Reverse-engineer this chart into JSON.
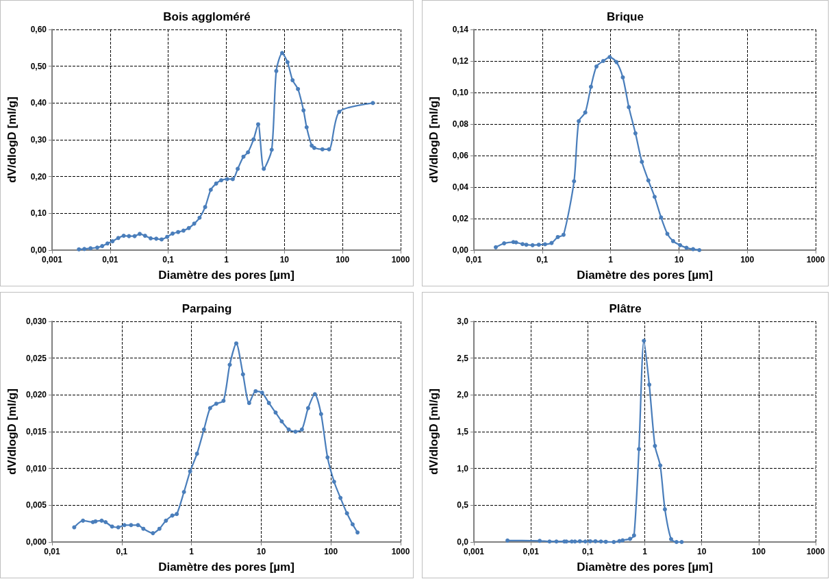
{
  "chart_data": [
    {
      "type": "line",
      "title": "Bois aggloméré",
      "xlabel": "Diamètre des pores [µm]",
      "ylabel": "dV/dlogD [ml/g]",
      "log": "x",
      "grid": true,
      "marker": "circle",
      "line_style": "solid",
      "xlim": [
        0.001,
        1000
      ],
      "xticks": [
        {
          "value": 0.001,
          "label": "0,001"
        },
        {
          "value": 0.01,
          "label": "0,01"
        },
        {
          "value": 0.1,
          "label": "0,1"
        },
        1,
        10,
        100,
        1000
      ],
      "ylim": [
        0,
        0.6
      ],
      "yticks": [
        {
          "value": 0,
          "label": "0,00"
        },
        {
          "value": 0.1,
          "label": "0,10"
        },
        {
          "value": 0.2,
          "label": "0,20"
        },
        {
          "value": 0.3,
          "label": "0,30"
        },
        {
          "value": 0.4,
          "label": "0,40"
        },
        {
          "value": 0.5,
          "label": "0,50"
        },
        {
          "value": 0.6,
          "label": "0,60"
        }
      ],
      "series": [
        {
          "color": "#4a7ebb",
          "x": [
            0.0029,
            0.0036,
            0.0046,
            0.006,
            0.0073,
            0.009,
            0.011,
            0.0138,
            0.0171,
            0.0211,
            0.0264,
            0.0323,
            0.0399,
            0.0498,
            0.0622,
            0.0769,
            0.096,
            0.119,
            0.148,
            0.183,
            0.226,
            0.28,
            0.346,
            0.432,
            0.54,
            0.668,
            0.817,
            1.03,
            1.29,
            1.57,
            1.97,
            2.36,
            2.94,
            3.53,
            4.41,
            6.04,
            7.24,
            9.14,
            11.3,
            13.8,
            17.1,
            21.3,
            24.1,
            29.5,
            32.6,
            45.1,
            58.6,
            87.8,
            333
          ],
          "values": [
            0.002,
            0.003,
            0.005,
            0.007,
            0.011,
            0.018,
            0.024,
            0.033,
            0.039,
            0.038,
            0.038,
            0.044,
            0.039,
            0.032,
            0.031,
            0.029,
            0.036,
            0.045,
            0.049,
            0.053,
            0.06,
            0.072,
            0.088,
            0.117,
            0.164,
            0.181,
            0.19,
            0.193,
            0.193,
            0.221,
            0.254,
            0.266,
            0.301,
            0.342,
            0.221,
            0.273,
            0.487,
            0.536,
            0.511,
            0.462,
            0.438,
            0.38,
            0.334,
            0.284,
            0.278,
            0.274,
            0.274,
            0.376,
            0.4
          ]
        }
      ]
    },
    {
      "type": "line",
      "title": "Brique",
      "xlabel": "Diamètre des pores [µm]",
      "ylabel": "dV/dlogD [ml/g]",
      "log": "x",
      "grid": true,
      "marker": "circle",
      "line_style": "solid",
      "xlim": [
        0.01,
        1000
      ],
      "xticks": [
        {
          "value": 0.01,
          "label": "0,01"
        },
        {
          "value": 0.1,
          "label": "0,1"
        },
        1,
        10,
        100,
        1000
      ],
      "ylim": [
        0,
        0.14
      ],
      "yticks": [
        {
          "value": 0,
          "label": "0,00"
        },
        {
          "value": 0.02,
          "label": "0,02"
        },
        {
          "value": 0.04,
          "label": "0,04"
        },
        {
          "value": 0.06,
          "label": "0,06"
        },
        {
          "value": 0.08,
          "label": "0,08"
        },
        {
          "value": 0.1,
          "label": "0,10"
        },
        {
          "value": 0.12,
          "label": "0,12"
        },
        {
          "value": 0.14,
          "label": "0,14"
        }
      ],
      "series": [
        {
          "color": "#4a7ebb",
          "x": [
            0.0209,
            0.0277,
            0.0378,
            0.0414,
            0.0515,
            0.0585,
            0.0722,
            0.0891,
            0.11,
            0.137,
            0.169,
            0.205,
            0.292,
            0.342,
            0.426,
            0.516,
            0.621,
            0.78,
            0.97,
            1.22,
            1.51,
            1.85,
            2.31,
            2.87,
            3.57,
            4.41,
            5.48,
            6.77,
            8.22,
            10.4,
            12.9,
            16.1,
            19.9
          ],
          "values": [
            0.0018,
            0.0043,
            0.0051,
            0.0049,
            0.0038,
            0.0034,
            0.0031,
            0.0034,
            0.0037,
            0.0045,
            0.0083,
            0.0097,
            0.0437,
            0.0818,
            0.0873,
            0.1036,
            0.1165,
            0.12,
            0.1225,
            0.1193,
            0.1096,
            0.0907,
            0.0741,
            0.056,
            0.0442,
            0.0338,
            0.0207,
            0.0103,
            0.0057,
            0.0031,
            0.0015,
            0.0006,
            0
          ]
        }
      ]
    },
    {
      "type": "line",
      "title": "Parpaing",
      "xlabel": "Diamètre des pores [µm]",
      "ylabel": "dV/dlogD [ml/g]",
      "log": "x",
      "grid": true,
      "marker": "circle",
      "line_style": "solid",
      "xlim": [
        0.01,
        1000
      ],
      "xticks": [
        {
          "value": 0.01,
          "label": "0,01"
        },
        {
          "value": 0.1,
          "label": "0,1"
        },
        1,
        10,
        100,
        1000
      ],
      "ylim": [
        0,
        0.03
      ],
      "yticks": [
        {
          "value": 0,
          "label": "0,000"
        },
        {
          "value": 0.005,
          "label": "0,005"
        },
        {
          "value": 0.01,
          "label": "0,010"
        },
        {
          "value": 0.015,
          "label": "0,015"
        },
        {
          "value": 0.02,
          "label": "0,020"
        },
        {
          "value": 0.025,
          "label": "0,025"
        },
        {
          "value": 0.03,
          "label": "0,030"
        }
      ],
      "series": [
        {
          "color": "#4a7ebb",
          "x": [
            0.0208,
            0.0278,
            0.0385,
            0.042,
            0.0515,
            0.0586,
            0.0726,
            0.0891,
            0.109,
            0.136,
            0.171,
            0.204,
            0.28,
            0.347,
            0.43,
            0.531,
            0.615,
            0.78,
            0.957,
            1.2,
            1.51,
            1.85,
            2.27,
            2.88,
            3.54,
            4.39,
            5.48,
            6.72,
            8.32,
            10.3,
            12.9,
            16.1,
            19.7,
            24.8,
            31,
            38.4,
            47.1,
            58.9,
            72.3,
            89.5,
            111,
            137,
            170,
            205,
            241
          ],
          "values": [
            0.002,
            0.0029,
            0.0027,
            0.0028,
            0.0029,
            0.0027,
            0.0021,
            0.002,
            0.0023,
            0.0023,
            0.0023,
            0.0018,
            0.0012,
            0.0018,
            0.0029,
            0.0036,
            0.0038,
            0.0068,
            0.0096,
            0.012,
            0.0153,
            0.0182,
            0.0188,
            0.0192,
            0.0241,
            0.027,
            0.0228,
            0.0189,
            0.0205,
            0.0203,
            0.0189,
            0.0176,
            0.0164,
            0.0153,
            0.015,
            0.0153,
            0.0182,
            0.0201,
            0.0174,
            0.0115,
            0.0082,
            0.006,
            0.0039,
            0.0024,
            0.0013
          ]
        }
      ]
    },
    {
      "type": "line",
      "title": "Plâtre",
      "xlabel": "Diamètre des pores [µm]",
      "ylabel": "dV/dlogD [ml/g]",
      "log": "x",
      "grid": true,
      "marker": "circle",
      "line_style": "solid",
      "xlim": [
        0.001,
        1000
      ],
      "xticks": [
        {
          "value": 0.001,
          "label": "0,001"
        },
        {
          "value": 0.01,
          "label": "0,01"
        },
        {
          "value": 0.1,
          "label": "0,1"
        },
        1,
        10,
        100,
        1000
      ],
      "ylim": [
        0,
        3
      ],
      "yticks": [
        {
          "value": 0,
          "label": "0,0"
        },
        {
          "value": 0.5,
          "label": "0,5"
        },
        {
          "value": 1,
          "label": "1,0"
        },
        {
          "value": 1.5,
          "label": "1,5"
        },
        {
          "value": 2,
          "label": "2,0"
        },
        {
          "value": 2.5,
          "label": "2,5"
        },
        {
          "value": 3,
          "label": "3,0"
        }
      ],
      "series": [
        {
          "color": "#4a7ebb",
          "x": [
            0.00389,
            0.0143,
            0.0213,
            0.0281,
            0.0387,
            0.042,
            0.0523,
            0.0595,
            0.0726,
            0.0905,
            0.11,
            0.136,
            0.17,
            0.207,
            0.286,
            0.359,
            0.409,
            0.552,
            0.648,
            0.791,
            0.966,
            1.2,
            1.51,
            1.87,
            2.26,
            2.9,
            3.61,
            4.45
          ],
          "values": [
            0.02,
            0.016,
            0.007,
            0.007,
            0.007,
            0.007,
            0.007,
            0.007,
            0.01,
            0.007,
            0.01,
            0.01,
            0.007,
            0.003,
            0,
            0.013,
            0.023,
            0.043,
            0.089,
            1.263,
            2.737,
            2.139,
            1.306,
            1.04,
            0.444,
            0.039,
            0,
            0
          ]
        }
      ]
    }
  ]
}
